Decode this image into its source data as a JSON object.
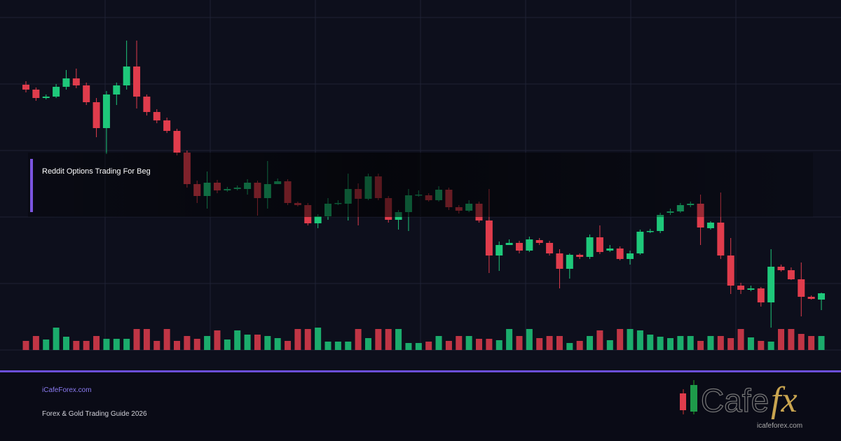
{
  "chart_data": {
    "type": "candlestick",
    "title": "Reddit Options Trading For Beg",
    "ylim": [
      0,
      475
    ],
    "grid": true,
    "up_color": "#1ec87a",
    "down_color": "#e03c4c",
    "ohlc": [
      [
        379,
        384,
        368,
        372
      ],
      [
        372,
        375,
        356,
        360
      ],
      [
        360,
        365,
        358,
        362
      ],
      [
        362,
        380,
        360,
        376
      ],
      [
        376,
        400,
        372,
        388
      ],
      [
        388,
        402,
        374,
        378
      ],
      [
        378,
        382,
        350,
        354
      ],
      [
        354,
        360,
        304,
        317
      ],
      [
        317,
        370,
        280,
        365
      ],
      [
        365,
        382,
        350,
        378
      ],
      [
        378,
        442,
        372,
        405
      ],
      [
        405,
        442,
        345,
        362
      ],
      [
        362,
        365,
        335,
        340
      ],
      [
        340,
        344,
        324,
        328
      ],
      [
        328,
        332,
        310,
        313
      ],
      [
        313,
        316,
        278,
        282
      ],
      [
        282,
        285,
        232,
        237
      ],
      [
        237,
        242,
        210,
        220
      ],
      [
        220,
        255,
        202,
        239
      ],
      [
        239,
        243,
        224,
        228
      ],
      [
        228,
        233,
        226,
        230
      ],
      [
        230,
        235,
        228,
        232
      ],
      [
        230,
        244,
        222,
        239
      ],
      [
        239,
        242,
        192,
        217
      ],
      [
        217,
        270,
        202,
        237
      ],
      [
        237,
        245,
        237,
        241
      ],
      [
        241,
        244,
        207,
        210
      ],
      [
        210,
        212,
        205,
        207
      ],
      [
        207,
        210,
        178,
        181
      ],
      [
        181,
        194,
        174,
        191
      ],
      [
        191,
        217,
        186,
        209
      ],
      [
        209,
        214,
        207,
        210
      ],
      [
        209,
        252,
        185,
        230
      ],
      [
        230,
        238,
        178,
        216
      ],
      [
        216,
        252,
        214,
        248
      ],
      [
        248,
        252,
        214,
        217
      ],
      [
        217,
        220,
        182,
        186
      ],
      [
        186,
        200,
        172,
        197
      ],
      [
        197,
        230,
        170,
        221
      ],
      [
        221,
        228,
        219,
        222
      ],
      [
        221,
        224,
        212,
        214
      ],
      [
        214,
        234,
        212,
        229
      ],
      [
        229,
        232,
        200,
        204
      ],
      [
        204,
        207,
        195,
        199
      ],
      [
        199,
        214,
        197,
        209
      ],
      [
        209,
        212,
        182,
        185
      ],
      [
        185,
        230,
        110,
        135
      ],
      [
        135,
        155,
        113,
        150
      ],
      [
        150,
        158,
        150,
        153
      ],
      [
        153,
        156,
        138,
        142
      ],
      [
        142,
        162,
        140,
        158
      ],
      [
        157,
        160,
        150,
        153
      ],
      [
        153,
        156,
        135,
        138
      ],
      [
        138,
        144,
        88,
        116
      ],
      [
        116,
        138,
        102,
        136
      ],
      [
        136,
        138,
        130,
        133
      ],
      [
        133,
        165,
        130,
        161
      ],
      [
        161,
        178,
        137,
        140
      ],
      [
        142,
        150,
        140,
        145
      ],
      [
        145,
        148,
        128,
        130
      ],
      [
        130,
        142,
        122,
        138
      ],
      [
        138,
        172,
        136,
        169
      ],
      [
        169,
        173,
        167,
        170
      ],
      [
        170,
        196,
        167,
        193
      ],
      [
        196,
        202,
        193,
        198
      ],
      [
        198,
        210,
        196,
        207
      ],
      [
        207,
        212,
        204,
        209
      ],
      [
        209,
        222,
        150,
        175
      ],
      [
        174,
        184,
        172,
        182
      ],
      [
        182,
        225,
        130,
        135
      ],
      [
        135,
        160,
        80,
        92
      ],
      [
        92,
        96,
        80,
        86
      ],
      [
        86,
        92,
        84,
        88
      ],
      [
        88,
        90,
        62,
        68
      ],
      [
        68,
        144,
        32,
        119
      ],
      [
        119,
        122,
        112,
        114
      ],
      [
        114,
        118,
        100,
        101
      ],
      [
        101,
        125,
        48,
        76
      ],
      [
        76,
        78,
        72,
        73
      ],
      [
        72,
        82,
        57,
        81
      ]
    ],
    "volume": [
      13,
      20,
      15,
      32,
      19,
      13,
      13,
      20,
      16,
      16,
      16,
      30,
      30,
      13,
      30,
      13,
      20,
      16,
      20,
      28,
      15,
      28,
      22,
      22,
      20,
      17,
      13,
      30,
      30,
      32,
      12,
      12,
      12,
      30,
      17,
      30,
      30,
      30,
      10,
      10,
      12,
      20,
      13,
      20,
      20,
      16,
      16,
      14,
      30,
      20,
      30,
      17,
      20,
      20,
      10,
      13,
      20,
      28,
      14,
      30,
      30,
      28,
      22,
      19,
      17,
      20,
      20,
      13,
      20,
      20,
      17,
      30,
      18,
      13,
      12,
      30,
      30,
      23,
      20,
      20
    ]
  },
  "footer": {
    "site": "iCafeForex.com",
    "tagline": "Forex & Gold Trading Guide 2026"
  },
  "logo": {
    "word": "Cafe",
    "fx": "fx",
    "url": "icafeforex.com"
  }
}
